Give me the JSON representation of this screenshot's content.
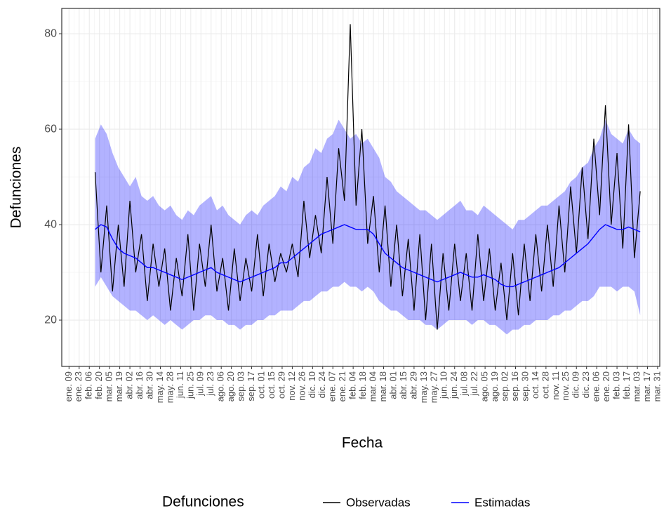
{
  "chart_data": {
    "type": "line",
    "x_label": "Fecha",
    "y_label": "Defunciones",
    "legend_title": "Defunciones",
    "legend_position": "bottom",
    "grid": true,
    "x": [
      36,
      44,
      52,
      60,
      68,
      76,
      84,
      92,
      100,
      108,
      116,
      124,
      132,
      140,
      148,
      156,
      164,
      172,
      180,
      188,
      196,
      204,
      212,
      220,
      228,
      236,
      244,
      252,
      260,
      268,
      276,
      284,
      292,
      300,
      308,
      316,
      324,
      332,
      340,
      348,
      356,
      364,
      372,
      380,
      388,
      396,
      404,
      412,
      420,
      428,
      436,
      444,
      452,
      460,
      468,
      476,
      484,
      492,
      500,
      508,
      516,
      524,
      532,
      540,
      548,
      556,
      564,
      572,
      580,
      588,
      596,
      604,
      612,
      620,
      628,
      636,
      644,
      652,
      660,
      668,
      676,
      684,
      692,
      700,
      708,
      716,
      724,
      732,
      740,
      748,
      756,
      764,
      772,
      780,
      788
    ],
    "series": [
      {
        "name": "Observadas",
        "color": "#000000",
        "values": [
          51,
          30,
          44,
          26,
          40,
          27,
          45,
          30,
          38,
          24,
          36,
          27,
          35,
          22,
          33,
          25,
          38,
          22,
          36,
          27,
          40,
          26,
          33,
          22,
          35,
          24,
          33,
          26,
          38,
          25,
          36,
          28,
          34,
          30,
          36,
          29,
          45,
          33,
          42,
          34,
          50,
          36,
          56,
          45,
          82,
          44,
          60,
          36,
          46,
          30,
          44,
          27,
          40,
          25,
          37,
          22,
          38,
          20,
          36,
          18,
          34,
          22,
          36,
          24,
          34,
          22,
          38,
          24,
          35,
          22,
          32,
          20,
          34,
          21,
          36,
          24,
          38,
          26,
          40,
          27,
          44,
          30,
          48,
          34,
          52,
          37,
          58,
          42,
          65,
          40,
          55,
          35,
          61,
          33,
          47
        ]
      },
      {
        "name": "Estimadas",
        "color": "#0000ff",
        "values": [
          39,
          40,
          39.5,
          37,
          35,
          34,
          33.5,
          33,
          32,
          31,
          31,
          30.5,
          30,
          29.5,
          29,
          28.5,
          29,
          29.5,
          30,
          30.5,
          31,
          30,
          29.5,
          29,
          28.5,
          28,
          28.5,
          29,
          29.5,
          30,
          30.5,
          31,
          32,
          32,
          33,
          34,
          35,
          36,
          37,
          38,
          38.5,
          39,
          39.5,
          40,
          39.5,
          39,
          39,
          39,
          38,
          36,
          34,
          33,
          32,
          31,
          30.5,
          30,
          29.5,
          29,
          28.5,
          28,
          28.5,
          29,
          29.5,
          30,
          29.5,
          29,
          29,
          29.5,
          29,
          28.5,
          27.5,
          27,
          27,
          27.5,
          28,
          28.5,
          29,
          29.5,
          30,
          30.5,
          31,
          32,
          33,
          34,
          35,
          36,
          37.5,
          39,
          40,
          39.5,
          39,
          39,
          39.5,
          39,
          38.5
        ]
      }
    ],
    "band": {
      "color": "#0000ff",
      "opacity": 0.3,
      "upper": [
        58,
        61,
        59,
        55,
        52,
        50,
        48,
        50,
        46,
        45,
        46,
        44,
        43,
        44,
        42,
        41,
        43,
        42,
        44,
        45,
        46,
        43,
        44,
        42,
        41,
        40,
        42,
        43,
        42,
        44,
        45,
        46,
        48,
        47,
        50,
        49,
        52,
        53,
        56,
        55,
        58,
        59,
        62,
        60,
        58,
        59,
        57,
        58,
        56,
        54,
        50,
        49,
        47,
        46,
        45,
        44,
        43,
        43,
        42,
        41,
        42,
        43,
        44,
        45,
        43,
        43,
        42,
        44,
        43,
        42,
        41,
        40,
        39,
        41,
        41,
        42,
        43,
        44,
        44,
        45,
        46,
        47,
        49,
        50,
        52,
        53,
        56,
        58,
        62,
        59,
        58,
        57,
        60,
        58,
        57
      ],
      "lower": [
        27,
        29,
        27,
        25,
        24,
        23,
        22,
        22,
        21,
        20,
        21,
        20,
        19,
        20,
        19,
        18,
        19,
        20,
        20,
        21,
        21,
        20,
        20,
        19,
        19,
        18,
        19,
        19,
        20,
        20,
        21,
        21,
        22,
        22,
        22,
        23,
        24,
        24,
        25,
        26,
        26,
        27,
        27,
        28,
        27,
        27,
        26,
        27,
        26,
        24,
        23,
        22,
        22,
        21,
        20,
        20,
        20,
        19,
        19,
        18,
        19,
        20,
        20,
        20,
        20,
        19,
        20,
        20,
        19,
        19,
        18,
        17,
        18,
        18,
        19,
        19,
        20,
        20,
        20,
        21,
        21,
        22,
        22,
        23,
        24,
        24,
        25,
        27,
        27,
        27,
        26,
        27,
        27,
        26,
        21
      ]
    },
    "xlim": [
      -10,
      815
    ],
    "xticks": [
      {
        "value": 0,
        "label": "ene. 09"
      },
      {
        "value": 14,
        "label": "ene. 23"
      },
      {
        "value": 28,
        "label": "feb. 06"
      },
      {
        "value": 42,
        "label": "feb. 20"
      },
      {
        "value": 56,
        "label": "mar. 05"
      },
      {
        "value": 70,
        "label": "mar. 19"
      },
      {
        "value": 84,
        "label": "abr. 02"
      },
      {
        "value": 98,
        "label": "abr. 16"
      },
      {
        "value": 112,
        "label": "abr. 30"
      },
      {
        "value": 126,
        "label": "may. 14"
      },
      {
        "value": 140,
        "label": "may. 28"
      },
      {
        "value": 154,
        "label": "jun. 11"
      },
      {
        "value": 168,
        "label": "jun. 25"
      },
      {
        "value": 182,
        "label": "jul. 09"
      },
      {
        "value": 196,
        "label": "jul. 23"
      },
      {
        "value": 210,
        "label": "ago. 06"
      },
      {
        "value": 224,
        "label": "ago. 20"
      },
      {
        "value": 238,
        "label": "sep. 03"
      },
      {
        "value": 252,
        "label": "sep. 17"
      },
      {
        "value": 266,
        "label": "oct. 01"
      },
      {
        "value": 280,
        "label": "oct. 15"
      },
      {
        "value": 294,
        "label": "oct. 29"
      },
      {
        "value": 308,
        "label": "nov. 12"
      },
      {
        "value": 322,
        "label": "nov. 26"
      },
      {
        "value": 336,
        "label": "dic. 10"
      },
      {
        "value": 350,
        "label": "dic. 24"
      },
      {
        "value": 364,
        "label": "ene. 07"
      },
      {
        "value": 378,
        "label": "ene. 21"
      },
      {
        "value": 392,
        "label": "feb. 04"
      },
      {
        "value": 406,
        "label": "feb. 18"
      },
      {
        "value": 420,
        "label": "mar. 04"
      },
      {
        "value": 434,
        "label": "mar. 18"
      },
      {
        "value": 448,
        "label": "abr. 01"
      },
      {
        "value": 462,
        "label": "abr. 15"
      },
      {
        "value": 476,
        "label": "abr. 29"
      },
      {
        "value": 490,
        "label": "may. 13"
      },
      {
        "value": 504,
        "label": "may. 27"
      },
      {
        "value": 518,
        "label": "jun. 10"
      },
      {
        "value": 532,
        "label": "jun. 24"
      },
      {
        "value": 546,
        "label": "jul. 08"
      },
      {
        "value": 560,
        "label": "jul. 22"
      },
      {
        "value": 574,
        "label": "ago. 05"
      },
      {
        "value": 588,
        "label": "ago. 19"
      },
      {
        "value": 602,
        "label": "sep. 02"
      },
      {
        "value": 616,
        "label": "sep. 16"
      },
      {
        "value": 630,
        "label": "sep. 30"
      },
      {
        "value": 644,
        "label": "oct. 14"
      },
      {
        "value": 658,
        "label": "oct. 28"
      },
      {
        "value": 672,
        "label": "nov. 11"
      },
      {
        "value": 686,
        "label": "nov. 25"
      },
      {
        "value": 700,
        "label": "dic. 09"
      },
      {
        "value": 714,
        "label": "dic. 23"
      },
      {
        "value": 728,
        "label": "ene. 06"
      },
      {
        "value": 742,
        "label": "ene. 20"
      },
      {
        "value": 756,
        "label": "feb. 03"
      },
      {
        "value": 770,
        "label": "feb. 17"
      },
      {
        "value": 784,
        "label": "mar. 03"
      },
      {
        "value": 798,
        "label": "mar. 17"
      },
      {
        "value": 812,
        "label": "mar. 31"
      }
    ],
    "ylim": [
      10.3,
      85.3
    ],
    "yticks": [
      20,
      40,
      60,
      80
    ]
  }
}
